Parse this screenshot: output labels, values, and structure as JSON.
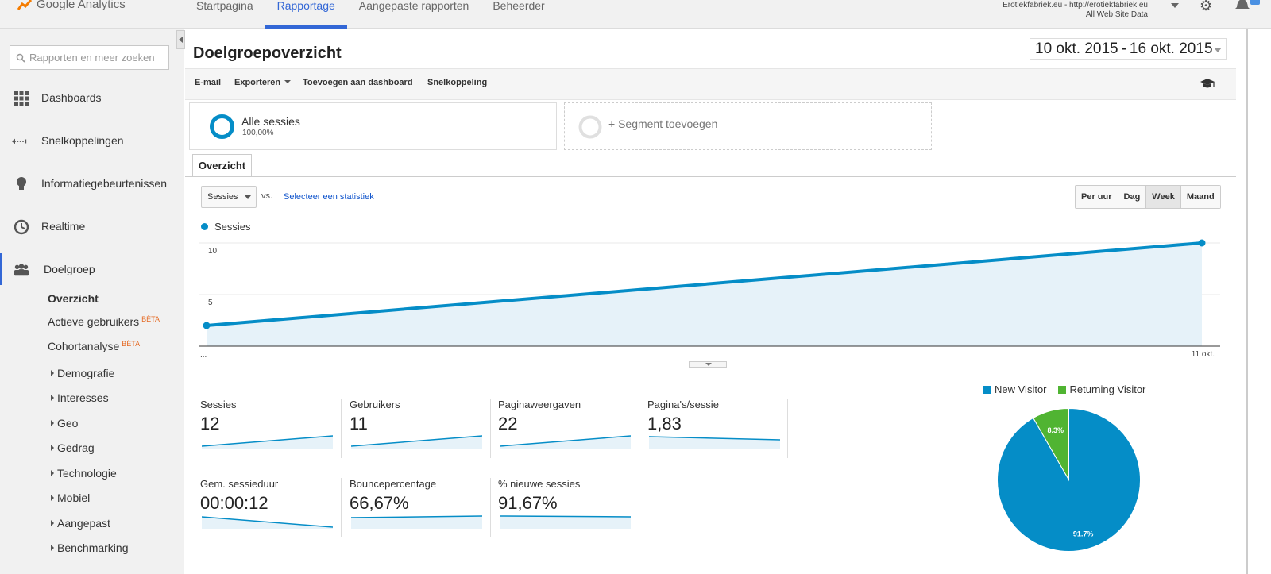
{
  "app": {
    "name": "Google Analytics"
  },
  "topnav": [
    {
      "label": "Startpagina",
      "active": false
    },
    {
      "label": "Rapportage",
      "active": true
    },
    {
      "label": "Aangepaste rapporten",
      "active": false
    },
    {
      "label": "Beheerder",
      "active": false
    }
  ],
  "account": {
    "line1": "Erotiekfabriek.eu - http://erotiekfabriek.eu",
    "line2": "All Web Site Data"
  },
  "search": {
    "placeholder": "Rapporten en meer zoeken"
  },
  "sidebar": {
    "items": [
      {
        "label": "Dashboards",
        "icon": "grid-icon"
      },
      {
        "label": "Snelkoppelingen",
        "icon": "shortcut-icon"
      },
      {
        "label": "Informatiegebeurtenissen",
        "icon": "lightbulb-icon"
      },
      {
        "label": "Realtime",
        "icon": "clock-icon"
      },
      {
        "label": "Doelgroep",
        "icon": "people-icon"
      }
    ],
    "sub": {
      "overzicht": "Overzicht",
      "actieve": "Actieve gebruikers",
      "cohort": "Cohortanalyse",
      "beta": "BÈTA"
    },
    "tree": [
      "Demografie",
      "Interesses",
      "Geo",
      "Gedrag",
      "Technologie",
      "Mobiel",
      "Aangepast",
      "Benchmarking"
    ]
  },
  "page": {
    "title": "Doelgroepoverzicht",
    "date_start": "10 okt. 2015",
    "date_sep": "-",
    "date_end": "16 okt. 2015"
  },
  "toolbar": {
    "email": "E-mail",
    "export": "Exporteren",
    "add_dashboard": "Toevoegen aan dashboard",
    "shortcut": "Snelkoppeling"
  },
  "segments": {
    "name": "Alle sessies",
    "pct": "100,00%",
    "add": "+ Segment toevoegen"
  },
  "tab": {
    "overview": "Overzicht"
  },
  "controls": {
    "metric": "Sessies",
    "vs": "vs.",
    "select_stat": "Selecteer een statistiek",
    "periods": [
      "Per uur",
      "Dag",
      "Week",
      "Maand"
    ],
    "active_period": "Week"
  },
  "chart_data": [
    {
      "type": "area",
      "series": [
        {
          "name": "Sessies",
          "values": [
            2,
            10
          ]
        }
      ],
      "x": [
        "...",
        "11 okt."
      ],
      "yticks": [
        5,
        10
      ],
      "ylim": [
        0,
        10
      ],
      "color": "#058dc7"
    },
    {
      "type": "pie",
      "categories": [
        "New Visitor",
        "Returning Visitor"
      ],
      "values": [
        91.7,
        8.3
      ],
      "labels": [
        "91.7%",
        "8.3%"
      ],
      "colors": [
        "#058dc7",
        "#50b432"
      ],
      "legend": "top"
    }
  ],
  "stats": [
    {
      "label": "Sessies",
      "value": "12",
      "trend": "up"
    },
    {
      "label": "Gebruikers",
      "value": "11",
      "trend": "up"
    },
    {
      "label": "Paginaweergaven",
      "value": "22",
      "trend": "up"
    },
    {
      "label": "Pagina's/sessie",
      "value": "1,83",
      "trend": "down"
    },
    {
      "label": "Gem. sessieduur",
      "value": "00:00:12",
      "trend": "down"
    },
    {
      "label": "Bouncepercentage",
      "value": "66,67%",
      "trend": "up"
    },
    {
      "label": "% nieuwe sessies",
      "value": "91,67%",
      "trend": "flat"
    }
  ]
}
